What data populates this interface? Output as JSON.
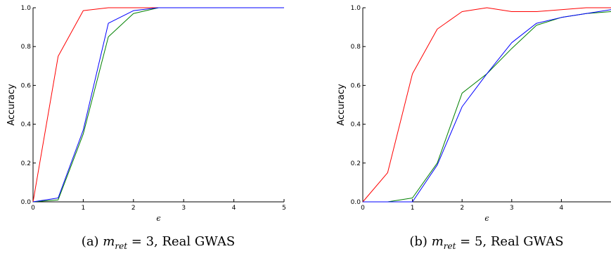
{
  "chart_data": [
    {
      "type": "line",
      "ylabel": "Accuracy",
      "xlabel": "ϵ",
      "xlim": [
        0,
        5
      ],
      "ylim": [
        0,
        1
      ],
      "xticks": [
        "0",
        "1",
        "2",
        "3",
        "4",
        "5"
      ],
      "yticks": [
        "0.0",
        "0.2",
        "0.4",
        "0.6",
        "0.8",
        "1.0"
      ],
      "caption": {
        "prefix": "(a) ",
        "var": "m",
        "sub": "ret",
        "rest": " = 3, Real GWAS"
      },
      "series": [
        {
          "color": "#ff0000",
          "x": [
            0,
            0.5,
            1,
            1.5,
            2,
            2.5,
            3,
            3.5,
            4,
            4.5,
            5
          ],
          "y": [
            0.0,
            0.75,
            0.985,
            1.0,
            1.0,
            1.0,
            1.0,
            1.0,
            1.0,
            1.0,
            1.0
          ]
        },
        {
          "color": "#008000",
          "x": [
            0,
            0.5,
            1,
            1.5,
            2,
            2.5,
            3,
            3.5,
            4,
            4.5,
            5
          ],
          "y": [
            0.0,
            0.01,
            0.35,
            0.85,
            0.97,
            1.0,
            1.0,
            1.0,
            1.0,
            1.0,
            1.0
          ]
        },
        {
          "color": "#0000ff",
          "x": [
            0,
            0.5,
            1,
            1.5,
            2,
            2.5,
            3,
            3.5,
            4,
            4.5,
            5
          ],
          "y": [
            0.0,
            0.02,
            0.37,
            0.92,
            0.985,
            1.0,
            1.0,
            1.0,
            1.0,
            1.0,
            1.0
          ]
        }
      ]
    },
    {
      "type": "line",
      "ylabel": "Accuracy",
      "xlabel": "ϵ",
      "xlim": [
        0,
        5
      ],
      "ylim": [
        0,
        1
      ],
      "xticks": [
        "0",
        "1",
        "2",
        "3",
        "4"
      ],
      "yticks": [
        "0.0",
        "0.2",
        "0.4",
        "0.6",
        "0.8",
        "1.0"
      ],
      "caption": {
        "prefix": "(b) ",
        "var": "m",
        "sub": "ret",
        "rest": " = 5, Real GWAS"
      },
      "series": [
        {
          "color": "#ff0000",
          "x": [
            0,
            0.5,
            1,
            1.5,
            2,
            2.5,
            3,
            3.5,
            4,
            4.5,
            5
          ],
          "y": [
            0.0,
            0.15,
            0.66,
            0.89,
            0.98,
            1.0,
            0.98,
            0.98,
            0.99,
            1.0,
            1.0
          ]
        },
        {
          "color": "#008000",
          "x": [
            0,
            0.5,
            1,
            1.5,
            2,
            2.5,
            3,
            3.5,
            4,
            4.5,
            5
          ],
          "y": [
            0.0,
            0.0,
            0.02,
            0.2,
            0.56,
            0.66,
            0.79,
            0.91,
            0.95,
            0.97,
            0.98
          ]
        },
        {
          "color": "#0000ff",
          "x": [
            0,
            0.5,
            1,
            1.5,
            2,
            2.5,
            3,
            3.5,
            4,
            4.5,
            5
          ],
          "y": [
            0.0,
            0.0,
            0.0,
            0.19,
            0.49,
            0.66,
            0.82,
            0.92,
            0.95,
            0.97,
            0.99
          ]
        }
      ]
    }
  ]
}
